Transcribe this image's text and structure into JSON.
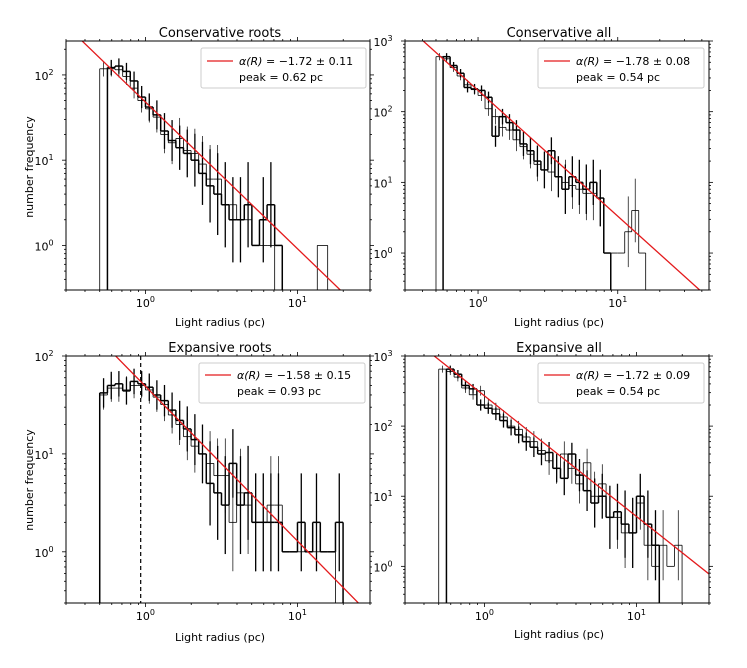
{
  "figure": {
    "background": "#ffffff",
    "axis_color": "#000000",
    "fit_color": "#e41a1c",
    "hist_color": "#000000"
  },
  "chart_data": [
    {
      "type": "histogram",
      "title": "Conservative roots",
      "xlabel": "Light radius (pc)",
      "ylabel": "number frequency",
      "xscale": "log",
      "yscale": "log",
      "xlim": [
        0.3,
        30
      ],
      "ylim": [
        0.3,
        250
      ],
      "xticks": [
        {
          "v": 1,
          "base": "10",
          "exp": "0"
        },
        {
          "v": 10,
          "base": "10",
          "exp": "1"
        }
      ],
      "yticks": [
        {
          "v": 1,
          "base": "10",
          "exp": "0"
        },
        {
          "v": 10,
          "base": "10",
          "exp": "1"
        },
        {
          "v": 100,
          "base": "10",
          "exp": "2"
        }
      ],
      "legend": {
        "label_prefix": "α(R) = ",
        "label_value": "−1.72 ± 0.11",
        "peak": "peak = 0.62 pc",
        "position": "top-right"
      },
      "fit": {
        "slope": -1.72,
        "x0": 1.0,
        "y0": 48
      },
      "series": [
        {
          "name": "thin",
          "edges": [
            0.5,
            0.562,
            0.631,
            0.708,
            0.794,
            0.891,
            1.0,
            1.122,
            1.259,
            1.413,
            1.585,
            1.778,
            1.995,
            2.239,
            2.512,
            2.818,
            3.162,
            3.548,
            3.981,
            4.467,
            5.012,
            5.623,
            6.31,
            7.079
          ],
          "values": [
            118,
            118,
            115,
            96,
            70,
            50,
            40,
            32,
            20,
            16,
            18,
            13,
            12,
            9,
            6,
            6,
            3,
            3,
            2,
            2,
            1,
            1,
            1
          ],
          "errors": [
            0.09,
            0.09,
            0.09,
            0.1,
            0.12,
            0.14,
            0.16,
            0.18,
            0.22,
            0.25,
            0.24,
            0.28,
            0.29,
            0.33,
            0.4,
            0.4,
            0.0,
            0.0,
            0.0,
            0.0,
            0.0,
            0.0,
            0.0
          ]
        },
        {
          "name": "thick",
          "edges": [
            0.562,
            0.631,
            0.708,
            0.794,
            0.891,
            1.0,
            1.122,
            1.259,
            1.413,
            1.585,
            1.778,
            1.995,
            2.239,
            2.512,
            2.818,
            3.162,
            3.548,
            3.981,
            4.467,
            5.012,
            5.623,
            6.31,
            7.079,
            7.943
          ],
          "values": [
            122,
            127,
            110,
            85,
            55,
            42,
            34,
            22,
            17,
            14,
            12,
            10,
            7,
            5,
            4,
            3,
            2,
            2,
            3,
            1,
            2,
            3,
            1
          ],
          "errors": [
            0.09,
            0.09,
            0.1,
            0.11,
            0.13,
            0.16,
            0.17,
            0.21,
            0.24,
            0.26,
            0.28,
            0.31,
            0.37,
            0.43,
            0.48,
            0.5,
            0.5,
            0.5,
            0.5,
            0.0,
            0.5,
            0.5,
            0.0
          ]
        },
        {
          "name": "outlier",
          "edges": [
            13.5,
            15.8
          ],
          "values": [
            1
          ],
          "errors": [
            0.0
          ]
        }
      ]
    },
    {
      "type": "histogram",
      "title": "Conservative all",
      "xlabel": "Light radius (pc)",
      "ylabel": "",
      "xscale": "log",
      "yscale": "log",
      "xlim": [
        0.3,
        45
      ],
      "ylim": [
        0.3,
        1000
      ],
      "xticks": [
        {
          "v": 1,
          "base": "10",
          "exp": "0"
        },
        {
          "v": 10,
          "base": "10",
          "exp": "1"
        }
      ],
      "yticks": [
        {
          "v": 1,
          "base": "10",
          "exp": "0"
        },
        {
          "v": 10,
          "base": "10",
          "exp": "1"
        },
        {
          "v": 100,
          "base": "10",
          "exp": "2"
        },
        {
          "v": 1000,
          "base": "10",
          "exp": "3"
        }
      ],
      "legend": {
        "label_prefix": "α(R) = ",
        "label_value": "−1.78 ± 0.08",
        "peak": "peak = 0.54 pc",
        "position": "top-right"
      },
      "fit": {
        "slope": -1.78,
        "x0": 1.0,
        "y0": 200
      },
      "series": [
        {
          "name": "thin",
          "edges": [
            0.5,
            0.562,
            0.631,
            0.708,
            0.794,
            0.891,
            1.0,
            1.122,
            1.259,
            1.413,
            1.585,
            1.778,
            1.995,
            2.239,
            2.512,
            2.818,
            3.162,
            3.548,
            3.981,
            4.467,
            5.012,
            5.623,
            6.31,
            7.079,
            7.943,
            8.913,
            10.0,
            11.22,
            12.59,
            14.13,
            15.85
          ],
          "values": [
            600,
            560,
            420,
            320,
            240,
            205,
            170,
            110,
            85,
            60,
            55,
            40,
            32,
            25,
            18,
            15,
            14,
            12,
            10,
            9,
            8,
            7,
            7,
            6,
            1,
            1,
            1,
            2,
            4,
            1
          ],
          "errors": [
            0.05,
            0.05,
            0.06,
            0.06,
            0.07,
            0.07,
            0.08,
            0.1,
            0.11,
            0.13,
            0.14,
            0.16,
            0.18,
            0.2,
            0.24,
            0.26,
            0.27,
            0.29,
            0.32,
            0.33,
            0.35,
            0.38,
            0.38,
            0.4,
            0.0,
            0.0,
            0.0,
            0.5,
            0.45,
            0.0
          ]
        },
        {
          "name": "thick",
          "edges": [
            0.562,
            0.631,
            0.708,
            0.794,
            0.891,
            1.0,
            1.122,
            1.259,
            1.413,
            1.585,
            1.778,
            1.995,
            2.239,
            2.512,
            2.818,
            3.162,
            3.548,
            3.981,
            4.467,
            5.012,
            5.623,
            6.31,
            7.079,
            7.943,
            8.913
          ],
          "values": [
            600,
            450,
            350,
            220,
            210,
            200,
            160,
            45,
            85,
            70,
            55,
            35,
            28,
            20,
            15,
            28,
            12,
            8,
            12,
            10,
            8,
            10,
            6,
            1
          ],
          "errors": [
            0.05,
            0.05,
            0.06,
            0.07,
            0.07,
            0.07,
            0.08,
            0.15,
            0.11,
            0.12,
            0.14,
            0.17,
            0.19,
            0.22,
            0.26,
            0.19,
            0.29,
            0.35,
            0.29,
            0.32,
            0.35,
            0.32,
            0.4,
            0.0
          ]
        }
      ]
    },
    {
      "type": "histogram",
      "title": "Expansive roots",
      "xlabel": "Light radius (pc)",
      "ylabel": "number frequency",
      "xscale": "log",
      "yscale": "log",
      "xlim": [
        0.3,
        30
      ],
      "ylim": [
        0.3,
        100
      ],
      "xticks": [
        {
          "v": 1,
          "base": "10",
          "exp": "0"
        },
        {
          "v": 10,
          "base": "10",
          "exp": "1"
        }
      ],
      "yticks": [
        {
          "v": 1,
          "base": "10",
          "exp": "0"
        },
        {
          "v": 10,
          "base": "10",
          "exp": "1"
        },
        {
          "v": 100,
          "base": "10",
          "exp": "2"
        }
      ],
      "legend": {
        "label_prefix": "α(R) = ",
        "label_value": "−1.58 ± 0.15",
        "peak": "peak = 0.93 pc",
        "position": "top-right"
      },
      "fit": {
        "slope": -1.58,
        "x0": 1.0,
        "y0": 49
      },
      "peak_line": 0.93,
      "series": [
        {
          "name": "thin",
          "edges": [
            0.5,
            0.562,
            0.631,
            0.708,
            0.794,
            0.891,
            1.0,
            1.122,
            1.259,
            1.413,
            1.585,
            1.778,
            1.995,
            2.239,
            2.512,
            2.818,
            3.162,
            3.548,
            3.981,
            4.467,
            5.012,
            5.623,
            6.31,
            7.079,
            7.943,
            8.913,
            10.0,
            11.22,
            12.59,
            14.13,
            15.85,
            17.78
          ],
          "values": [
            40,
            47,
            47,
            45,
            50,
            50,
            45,
            38,
            32,
            25,
            20,
            15,
            12,
            10,
            8,
            6,
            6,
            2,
            4,
            3,
            2,
            2,
            3,
            3,
            1,
            1,
            1,
            1,
            1,
            1,
            1
          ],
          "errors": [
            0.15,
            0.14,
            0.14,
            0.14,
            0.13,
            0.13,
            0.14,
            0.15,
            0.17,
            0.19,
            0.21,
            0.24,
            0.27,
            0.3,
            0.33,
            0.38,
            0.38,
            0.5,
            0.45,
            0.5,
            0.5,
            0.5,
            0.5,
            0.5,
            0.0,
            0.0,
            0.0,
            0.0,
            0.0,
            0.0,
            0.0
          ]
        },
        {
          "name": "thick",
          "edges": [
            0.5,
            0.562,
            0.631,
            0.708,
            0.794,
            0.891,
            1.0,
            1.122,
            1.259,
            1.413,
            1.585,
            1.778,
            1.995,
            2.239,
            2.512,
            2.818,
            3.162,
            3.548,
            3.981,
            4.467,
            5.012,
            5.623,
            6.31,
            7.079,
            7.943,
            8.913,
            10.0,
            11.22,
            12.59,
            14.13,
            15.85,
            17.78,
            19.95
          ],
          "values": [
            42,
            50,
            52,
            44,
            55,
            52,
            48,
            40,
            35,
            28,
            22,
            18,
            14,
            10,
            5,
            4,
            3,
            8,
            3,
            4,
            2,
            2,
            2,
            2,
            1,
            1,
            2,
            1,
            2,
            1,
            1,
            2
          ],
          "errors": [
            0.15,
            0.14,
            0.13,
            0.14,
            0.13,
            0.13,
            0.14,
            0.15,
            0.16,
            0.18,
            0.2,
            0.23,
            0.26,
            0.3,
            0.43,
            0.48,
            0.5,
            0.35,
            0.5,
            0.48,
            0.5,
            0.5,
            0.5,
            0.5,
            0.0,
            0.0,
            0.5,
            0.0,
            0.5,
            0.0,
            0.0,
            0.5
          ]
        }
      ]
    },
    {
      "type": "histogram",
      "title": "Expansive all",
      "xlabel": "Light radius (pc)",
      "ylabel": "",
      "xscale": "log",
      "yscale": "log",
      "xlim": [
        0.3,
        30
      ],
      "ylim": [
        0.3,
        1000
      ],
      "xticks": [
        {
          "v": 1,
          "base": "10",
          "exp": "0"
        },
        {
          "v": 10,
          "base": "10",
          "exp": "1"
        }
      ],
      "yticks": [
        {
          "v": 1,
          "base": "10",
          "exp": "0"
        },
        {
          "v": 10,
          "base": "10",
          "exp": "1"
        },
        {
          "v": 100,
          "base": "10",
          "exp": "2"
        },
        {
          "v": 1000,
          "base": "10",
          "exp": "3"
        }
      ],
      "legend": {
        "label_prefix": "α(R) = ",
        "label_value": "−1.72 ± 0.09",
        "peak": "peak = 0.54 pc",
        "position": "top-right"
      },
      "fit": {
        "slope": -1.72,
        "x0": 1.0,
        "y0": 270
      },
      "series": [
        {
          "name": "thin",
          "edges": [
            0.5,
            0.562,
            0.631,
            0.708,
            0.794,
            0.891,
            1.0,
            1.122,
            1.259,
            1.413,
            1.585,
            1.778,
            1.995,
            2.239,
            2.512,
            2.818,
            3.162,
            3.548,
            3.981,
            4.467,
            5.012,
            5.623,
            6.31,
            7.079,
            7.943,
            8.913,
            10.0,
            11.22,
            12.59,
            14.13,
            15.85,
            17.78,
            19.95
          ],
          "values": [
            650,
            600,
            500,
            350,
            280,
            320,
            200,
            175,
            135,
            100,
            90,
            70,
            60,
            45,
            32,
            25,
            40,
            25,
            15,
            30,
            10,
            15,
            5,
            5,
            3,
            3,
            8,
            2,
            1,
            2,
            1,
            2
          ],
          "errors": [
            0.05,
            0.05,
            0.06,
            0.07,
            0.07,
            0.07,
            0.08,
            0.09,
            0.1,
            0.11,
            0.12,
            0.14,
            0.15,
            0.17,
            0.2,
            0.22,
            0.18,
            0.22,
            0.28,
            0.2,
            0.35,
            0.28,
            0.45,
            0.45,
            0.5,
            0.5,
            0.38,
            0.5,
            0.0,
            0.5,
            0.0,
            0.5
          ]
        },
        {
          "name": "thick",
          "edges": [
            0.562,
            0.631,
            0.708,
            0.794,
            0.891,
            1.0,
            1.122,
            1.259,
            1.413,
            1.585,
            1.778,
            1.995,
            2.239,
            2.512,
            2.818,
            3.162,
            3.548,
            3.981,
            4.467,
            5.012,
            5.623,
            6.31,
            7.079,
            7.943,
            8.913,
            10.0,
            11.22,
            12.59,
            14.13
          ],
          "values": [
            650,
            550,
            380,
            340,
            200,
            180,
            150,
            120,
            95,
            75,
            60,
            50,
            40,
            42,
            25,
            18,
            40,
            20,
            12,
            8,
            10,
            5,
            6,
            4,
            3,
            10,
            4,
            2
          ],
          "errors": [
            0.05,
            0.06,
            0.06,
            0.07,
            0.08,
            0.08,
            0.09,
            0.1,
            0.11,
            0.12,
            0.13,
            0.14,
            0.16,
            0.15,
            0.2,
            0.24,
            0.16,
            0.23,
            0.29,
            0.35,
            0.32,
            0.45,
            0.4,
            0.48,
            0.5,
            0.32,
            0.48,
            0.5
          ]
        }
      ]
    }
  ]
}
